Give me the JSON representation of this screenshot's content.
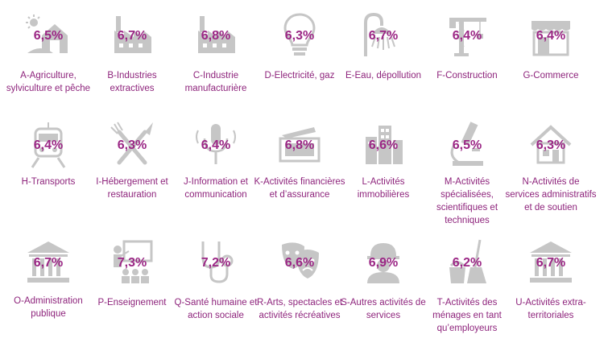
{
  "sectors": [
    {
      "value": "6,5%",
      "label": "A-Agriculture, sylviculture et pêche",
      "icon": "farm-icon"
    },
    {
      "value": "6,7%",
      "label": "B-Industries extractives",
      "icon": "factory-icon"
    },
    {
      "value": "6,8%",
      "label": "C-Industrie manufacturière",
      "icon": "factory-icon"
    },
    {
      "value": "6,3%",
      "label": "D-Electricité, gaz",
      "icon": "lightbulb-icon"
    },
    {
      "value": "6,7%",
      "label": "E-Eau, dépollution",
      "icon": "shower-icon"
    },
    {
      "value": "6,4%",
      "label": "F-Construction",
      "icon": "crane-icon"
    },
    {
      "value": "6,4%",
      "label": "G-Commerce",
      "icon": "shop-icon"
    },
    {
      "value": "6,4%",
      "label": "H-Transports",
      "icon": "train-icon"
    },
    {
      "value": "6,3%",
      "label": "I-Hébergement et restauration",
      "icon": "fork-knife-icon"
    },
    {
      "value": "6,4%",
      "label": "J-Information et communication",
      "icon": "microphone-icon"
    },
    {
      "value": "6,8%",
      "label": "K-Activités financières et d’assurance",
      "icon": "banknote-icon"
    },
    {
      "value": "6,6%",
      "label": "L-Activités immobilières",
      "icon": "buildings-icon"
    },
    {
      "value": "6,5%",
      "label": "M-Activités spécialisées, scientifiques et techniques",
      "icon": "microscope-icon"
    },
    {
      "value": "6,3%",
      "label": "N-Activités de services administratifs et de soutien",
      "icon": "house-icon"
    },
    {
      "value": "6,7%",
      "label": "O-Administration publique",
      "icon": "institution-icon"
    },
    {
      "value": "7,3%",
      "label": "P-Enseignement",
      "icon": "teacher-icon"
    },
    {
      "value": "7,2%",
      "label": "Q-Santé humaine et action sociale",
      "icon": "stethoscope-icon"
    },
    {
      "value": "6,6%",
      "label": "R-Arts, spectacles et activités récréatives",
      "icon": "theater-masks-icon"
    },
    {
      "value": "6,9%",
      "label": "S-Autres activités de services",
      "icon": "worker-helmet-icon"
    },
    {
      "value": "6,2%",
      "label": "T-Activités des ménages en tant qu’employeurs",
      "icon": "cleaning-icon"
    },
    {
      "value": "6,7%",
      "label": "U-Activités extra-territoriales",
      "icon": "institution-icon"
    }
  ],
  "colors": {
    "accent": "#9b2785",
    "label": "#8e247c",
    "icon": "#c6c6c6"
  }
}
